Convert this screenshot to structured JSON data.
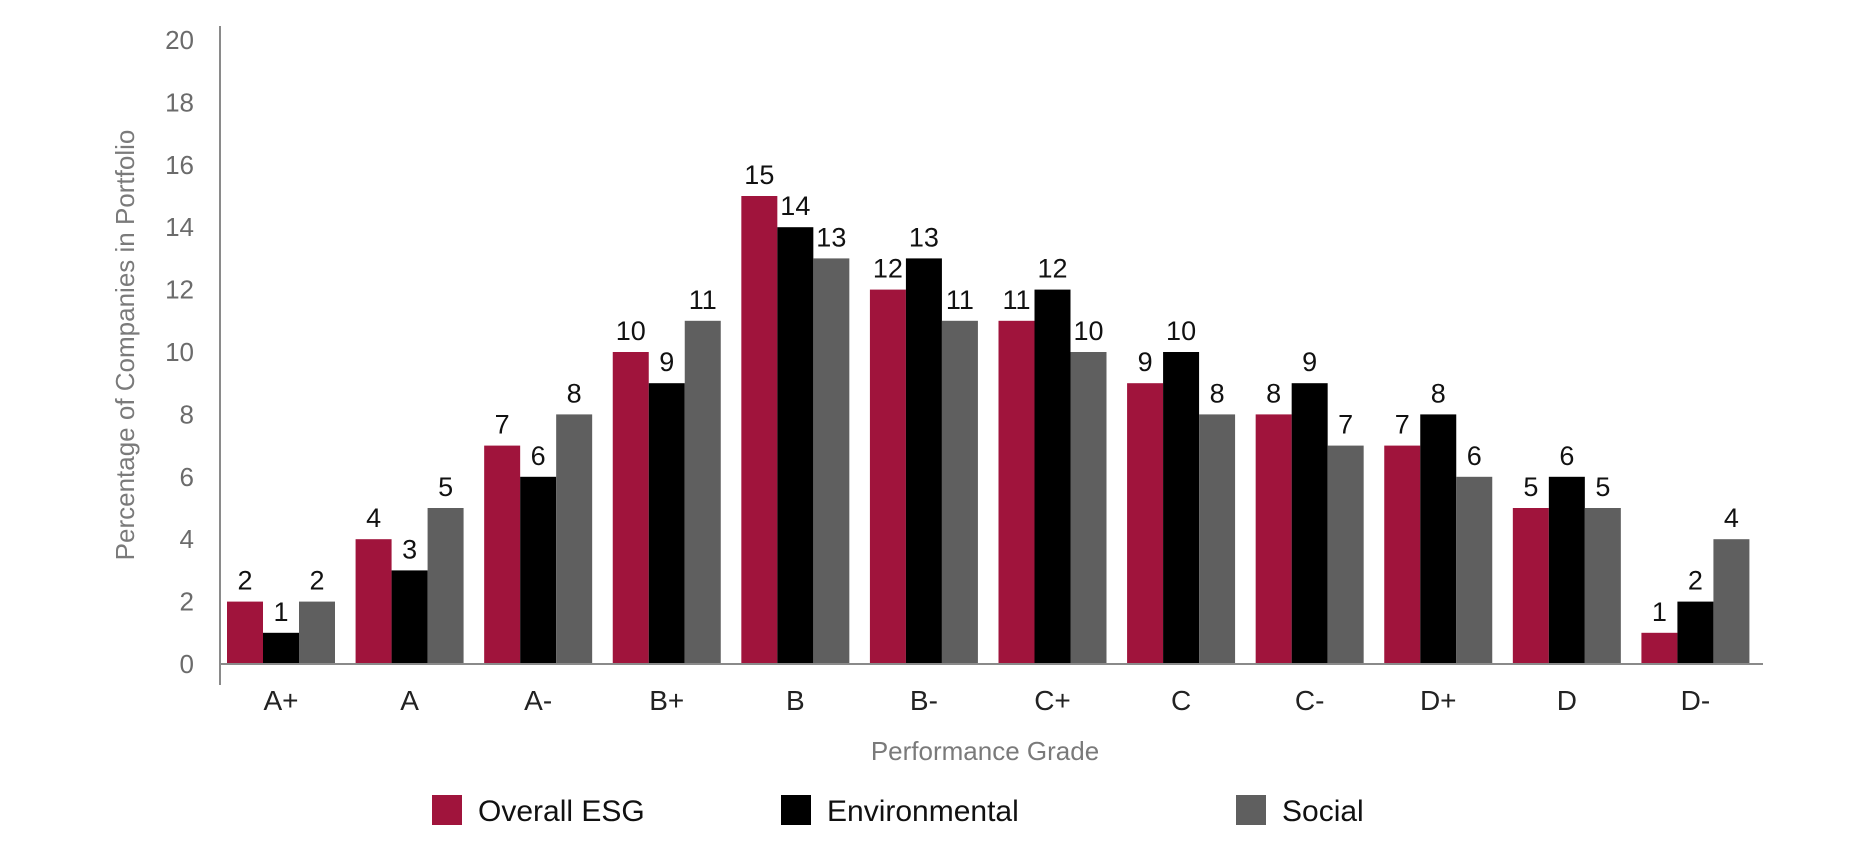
{
  "chart_data": {
    "type": "bar",
    "title": "",
    "xlabel": "Performance Grade",
    "ylabel": "Percentage of Companies in Portfolio",
    "ylim": [
      0,
      20
    ],
    "yticks": [
      0,
      2,
      4,
      6,
      8,
      10,
      12,
      14,
      16,
      18,
      20
    ],
    "grid": false,
    "legend_position": "bottom",
    "categories": [
      "A+",
      "A",
      "A-",
      "B+",
      "B",
      "B-",
      "C+",
      "C",
      "C-",
      "D+",
      "D",
      "D-"
    ],
    "series": [
      {
        "name": "Overall ESG",
        "color": "#a0143c",
        "values": [
          2,
          4,
          7,
          10,
          15,
          12,
          11,
          9,
          8,
          7,
          5,
          1
        ]
      },
      {
        "name": "Environmental",
        "color": "#000000",
        "values": [
          1,
          3,
          6,
          9,
          14,
          13,
          12,
          10,
          9,
          8,
          6,
          2
        ]
      },
      {
        "name": "Social",
        "color": "#5f5f5f",
        "values": [
          2,
          5,
          8,
          11,
          13,
          11,
          10,
          8,
          7,
          6,
          5,
          4
        ]
      }
    ]
  }
}
